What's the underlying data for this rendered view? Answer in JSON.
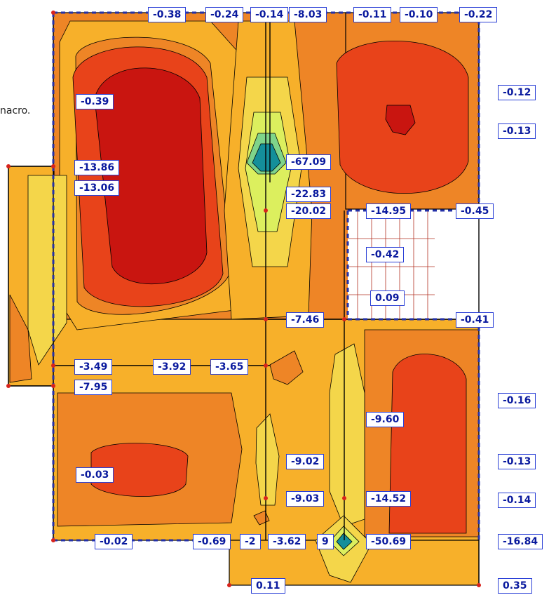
{
  "partial_text": "nacro.",
  "colors": {
    "background": "#ffffff",
    "fill_light_orange": "#f7b02a",
    "fill_orange": "#ee8526",
    "fill_red_orange": "#e8431a",
    "fill_dark_red": "#c91510",
    "fill_yellow": "#f4d64a",
    "fill_lime": "#dcef5e",
    "fill_green": "#7fd48a",
    "fill_teal": "#148f9a",
    "label_border": "#2a3fd6",
    "label_text": "#0a1a9e",
    "support_dot": "#d8231c",
    "edge_beam": "#2431a8"
  },
  "value_labels": [
    {
      "id": "top-1",
      "text": "-0.38"
    },
    {
      "id": "top-2",
      "text": "-0.24"
    },
    {
      "id": "top-3",
      "text": "-0.14"
    },
    {
      "id": "top-4",
      "text": "-8.03"
    },
    {
      "id": "top-5",
      "text": "-0.11"
    },
    {
      "id": "top-6",
      "text": "-0.10"
    },
    {
      "id": "top-7",
      "text": "-0.22"
    },
    {
      "id": "right-1",
      "text": "-0.12"
    },
    {
      "id": "right-2",
      "text": "-0.13"
    },
    {
      "id": "left-1",
      "text": "-0.39"
    },
    {
      "id": "left-2",
      "text": "-13.86"
    },
    {
      "id": "left-3",
      "text": "-13.06"
    },
    {
      "id": "mid-1",
      "text": "-67.09"
    },
    {
      "id": "mid-2",
      "text": "-22.83"
    },
    {
      "id": "mid-3",
      "text": "-20.02"
    },
    {
      "id": "mid-4",
      "text": "-14.95"
    },
    {
      "id": "mid-5",
      "text": "-0.45"
    },
    {
      "id": "mid-6",
      "text": "-0.42"
    },
    {
      "id": "mid-7",
      "text": "0.09"
    },
    {
      "id": "mid-8",
      "text": "-7.46"
    },
    {
      "id": "mid-9",
      "text": "-0.41"
    },
    {
      "id": "row-1",
      "text": "-3.49"
    },
    {
      "id": "row-2",
      "text": "-3.92"
    },
    {
      "id": "row-3",
      "text": "-3.65"
    },
    {
      "id": "row-4",
      "text": "-7.95"
    },
    {
      "id": "right-3",
      "text": "-0.16"
    },
    {
      "id": "low-1",
      "text": "-9.60"
    },
    {
      "id": "low-2",
      "text": "-9.02"
    },
    {
      "id": "right-4",
      "text": "-0.13"
    },
    {
      "id": "low-3",
      "text": "-0.03"
    },
    {
      "id": "low-4",
      "text": "-9.03"
    },
    {
      "id": "low-5",
      "text": "-14.52"
    },
    {
      "id": "right-5",
      "text": "-0.14"
    },
    {
      "id": "bot-1",
      "text": "-0.02"
    },
    {
      "id": "bot-2",
      "text": "-0.69"
    },
    {
      "id": "bot-3",
      "text": "-2"
    },
    {
      "id": "bot-4",
      "text": "-3.62"
    },
    {
      "id": "bot-5",
      "text": "9"
    },
    {
      "id": "bot-6",
      "text": "-50.69"
    },
    {
      "id": "right-6",
      "text": "-16.84"
    },
    {
      "id": "bot-7",
      "text": "0.11"
    },
    {
      "id": "bot-8",
      "text": "0.35"
    }
  ]
}
